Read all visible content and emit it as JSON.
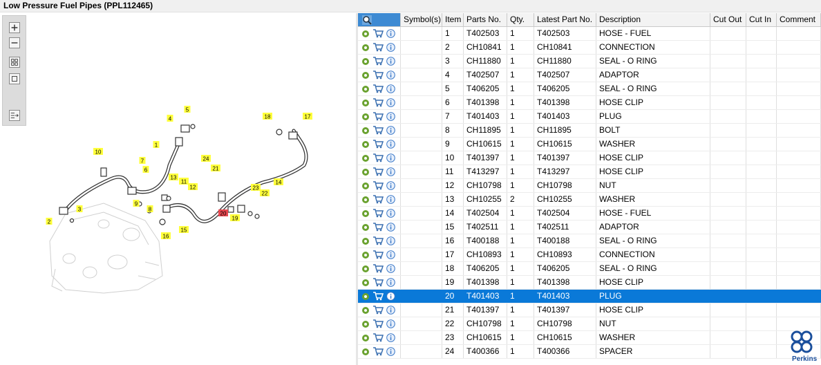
{
  "header": {
    "title": "Low Pressure Fuel Pipes (PPL112465)"
  },
  "table": {
    "columns": [
      "Symbol(s)",
      "Item",
      "Parts No.",
      "Qty.",
      "Latest Part No.",
      "Description",
      "Cut Out",
      "Cut In",
      "Comment"
    ],
    "rows": [
      [
        1,
        "T402503",
        1,
        "T402503",
        "HOSE - FUEL"
      ],
      [
        2,
        "CH10841",
        1,
        "CH10841",
        "CONNECTION"
      ],
      [
        3,
        "CH11880",
        1,
        "CH11880",
        "SEAL - O RING"
      ],
      [
        4,
        "T402507",
        1,
        "T402507",
        "ADAPTOR"
      ],
      [
        5,
        "T406205",
        1,
        "T406205",
        "SEAL - O RING"
      ],
      [
        6,
        "T401398",
        1,
        "T401398",
        "HOSE CLIP"
      ],
      [
        7,
        "T401403",
        1,
        "T401403",
        "PLUG"
      ],
      [
        8,
        "CH11895",
        1,
        "CH11895",
        "BOLT"
      ],
      [
        9,
        "CH10615",
        1,
        "CH10615",
        "WASHER"
      ],
      [
        10,
        "T401397",
        1,
        "T401397",
        "HOSE CLIP"
      ],
      [
        11,
        "T413297",
        1,
        "T413297",
        "HOSE CLIP"
      ],
      [
        12,
        "CH10798",
        1,
        "CH10798",
        "NUT"
      ],
      [
        13,
        "CH10255",
        2,
        "CH10255",
        "WASHER"
      ],
      [
        14,
        "T402504",
        1,
        "T402504",
        "HOSE - FUEL"
      ],
      [
        15,
        "T402511",
        1,
        "T402511",
        "ADAPTOR"
      ],
      [
        16,
        "T400188",
        1,
        "T400188",
        "SEAL - O RING"
      ],
      [
        17,
        "CH10893",
        1,
        "CH10893",
        "CONNECTION"
      ],
      [
        18,
        "T406205",
        1,
        "T406205",
        "SEAL - O RING"
      ],
      [
        19,
        "T401398",
        1,
        "T401398",
        "HOSE CLIP"
      ],
      [
        20,
        "T401403",
        1,
        "T401403",
        "PLUG"
      ],
      [
        21,
        "T401397",
        1,
        "T401397",
        "HOSE CLIP"
      ],
      [
        22,
        "CH10798",
        1,
        "CH10798",
        "NUT"
      ],
      [
        23,
        "CH10615",
        1,
        "CH10615",
        "WASHER"
      ],
      [
        24,
        "T400366",
        1,
        "T400366",
        "SPACER"
      ]
    ]
  },
  "diagram": {
    "callouts": [
      "1",
      "2",
      "3",
      "4",
      "5",
      "6",
      "7",
      "8",
      "9",
      "10",
      "11",
      "12",
      "13",
      "14",
      "15",
      "16",
      "17",
      "18",
      "19",
      "20",
      "21",
      "22",
      "23",
      "24"
    ]
  },
  "branding": {
    "logo_text": "Perkins"
  }
}
